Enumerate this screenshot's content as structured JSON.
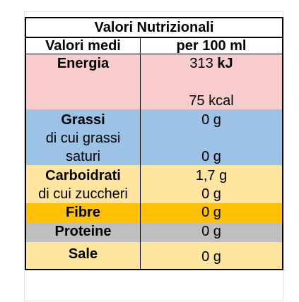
{
  "table": {
    "title": "Valori Nutrizionali",
    "header": {
      "left": "Valori medi",
      "right": "per 100 ml"
    },
    "rows": {
      "energy": {
        "label": "Energia",
        "value_kj_number": "313",
        "value_kj_unit": "kJ",
        "value_kcal": "75 kcal"
      },
      "fat": {
        "label": "Grassi",
        "sub_label_line1": "di cui grassi",
        "sub_label_line2": "saturi",
        "value": "0 g",
        "sub_value": "0 g"
      },
      "carbs": {
        "label": "Carboidrati",
        "sub_label": "di cui zuccheri",
        "value": "1,7 g",
        "sub_value": "0 g"
      },
      "fibre": {
        "label": "Fibre",
        "value": "0 g"
      },
      "protein": {
        "label": "Proteine",
        "value": "0 g"
      },
      "salt": {
        "label": "Sale",
        "value": "0 g"
      }
    },
    "colors": {
      "energy": "#f8cccc",
      "fat": "#9cc2e5",
      "carbs": "#fde5a0",
      "fibre": "#fdc004",
      "protein": "#bfbfbf",
      "salt": "#fde5a0"
    }
  }
}
